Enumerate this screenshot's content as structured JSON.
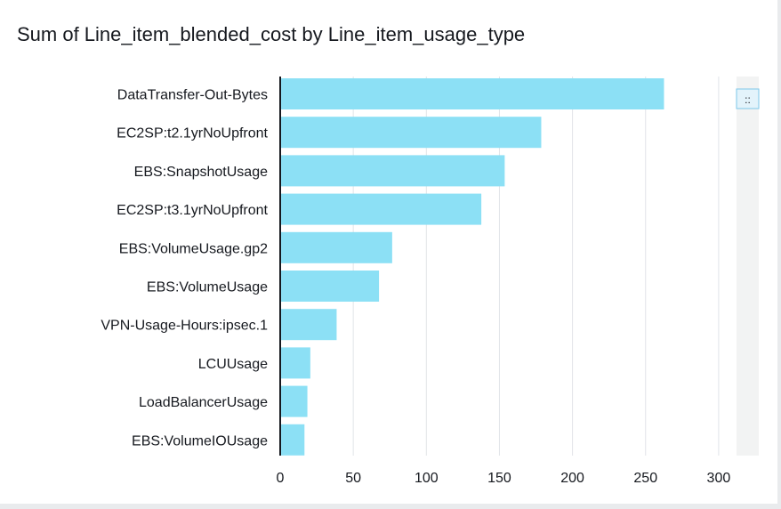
{
  "title": "Sum of Line_item_blended_cost by Line_item_usage_type",
  "colors": {
    "bar": "#8ce0f5",
    "axis": "#16191f",
    "grid": "#e1e4e8"
  },
  "scrollbar": {
    "grip_icon": "drag-handle-icon",
    "grip_glyph": "::"
  },
  "chart_data": {
    "type": "bar",
    "orientation": "horizontal",
    "title": "Sum of Line_item_blended_cost by Line_item_usage_type",
    "categories": [
      "DataTransfer-Out-Bytes",
      "EC2SP:t2.1yrNoUpfront",
      "EBS:SnapshotUsage",
      "EC2SP:t3.1yrNoUpfront",
      "EBS:VolumeUsage.gp2",
      "EBS:VolumeUsage",
      "VPN-Usage-Hours:ipsec.1",
      "LCUUsage",
      "LoadBalancerUsage",
      "EBS:VolumeIOUsage"
    ],
    "values": [
      262,
      178,
      153,
      137,
      76,
      67,
      38,
      20,
      18,
      16
    ],
    "xlim": [
      0,
      320
    ],
    "xticks": [
      0,
      50,
      100,
      150,
      200,
      250,
      300
    ],
    "tick_labels": [
      "0",
      "50",
      "100",
      "150",
      "200",
      "250",
      "300"
    ],
    "grid": true,
    "legend": "none"
  }
}
